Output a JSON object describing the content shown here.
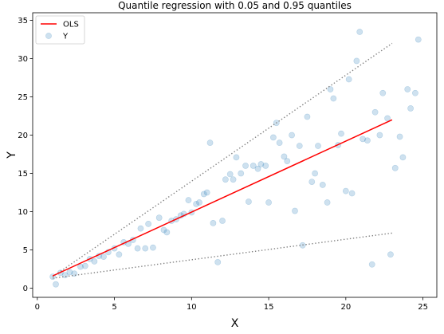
{
  "chart_data": {
    "type": "scatter",
    "title": "Quantile regression with 0.05 and 0.95 quantiles",
    "xlabel": "X",
    "ylabel": "Y",
    "xlim": [
      -0.3,
      25.9
    ],
    "ylim": [
      -1.2,
      36
    ],
    "xticks": [
      0,
      5,
      10,
      15,
      20,
      25
    ],
    "yticks": [
      0,
      5,
      10,
      15,
      20,
      25,
      30,
      35
    ],
    "grid": false,
    "legend": {
      "placement": "top-left",
      "entries": [
        "OLS",
        "Y"
      ]
    },
    "colors": {
      "ols": "#ff0000",
      "points": "#1f77b4",
      "quantile": "#808080"
    },
    "series": [
      {
        "name": "Y",
        "kind": "scatter",
        "points": [
          [
            1.0,
            1.5
          ],
          [
            1.2,
            0.5
          ],
          [
            1.5,
            2.0
          ],
          [
            1.8,
            1.7
          ],
          [
            2.1,
            2.1
          ],
          [
            2.4,
            1.9
          ],
          [
            2.8,
            2.8
          ],
          [
            3.1,
            2.9
          ],
          [
            3.4,
            3.8
          ],
          [
            3.7,
            3.5
          ],
          [
            4.0,
            4.2
          ],
          [
            4.3,
            4.1
          ],
          [
            4.6,
            4.7
          ],
          [
            5.0,
            5.2
          ],
          [
            5.3,
            4.4
          ],
          [
            5.6,
            6.0
          ],
          [
            5.9,
            5.8
          ],
          [
            6.2,
            6.3
          ],
          [
            6.5,
            5.2
          ],
          [
            6.7,
            7.8
          ],
          [
            7.0,
            5.2
          ],
          [
            7.2,
            8.4
          ],
          [
            7.5,
            5.3
          ],
          [
            7.9,
            9.2
          ],
          [
            8.2,
            7.6
          ],
          [
            8.4,
            7.3
          ],
          [
            8.7,
            8.8
          ],
          [
            9.0,
            9.0
          ],
          [
            9.3,
            9.5
          ],
          [
            9.5,
            9.7
          ],
          [
            9.8,
            11.5
          ],
          [
            10.0,
            9.9
          ],
          [
            10.3,
            11.0
          ],
          [
            10.5,
            11.2
          ],
          [
            10.8,
            12.3
          ],
          [
            11.0,
            12.5
          ],
          [
            11.2,
            19.0
          ],
          [
            11.4,
            8.5
          ],
          [
            11.7,
            3.4
          ],
          [
            12.0,
            8.8
          ],
          [
            12.2,
            14.2
          ],
          [
            12.5,
            14.9
          ],
          [
            12.7,
            14.2
          ],
          [
            12.9,
            17.1
          ],
          [
            13.2,
            15.0
          ],
          [
            13.5,
            16.0
          ],
          [
            13.7,
            11.3
          ],
          [
            14.0,
            16.0
          ],
          [
            14.3,
            15.6
          ],
          [
            14.5,
            16.2
          ],
          [
            14.8,
            16.0
          ],
          [
            15.0,
            11.2
          ],
          [
            15.3,
            19.7
          ],
          [
            15.5,
            21.6
          ],
          [
            15.7,
            19.0
          ],
          [
            16.0,
            17.2
          ],
          [
            16.2,
            16.6
          ],
          [
            16.5,
            20.0
          ],
          [
            16.7,
            10.1
          ],
          [
            17.0,
            18.6
          ],
          [
            17.2,
            5.6
          ],
          [
            17.5,
            22.4
          ],
          [
            17.8,
            13.9
          ],
          [
            18.0,
            15.0
          ],
          [
            18.2,
            18.6
          ],
          [
            18.5,
            13.5
          ],
          [
            18.8,
            11.2
          ],
          [
            19.0,
            26.0
          ],
          [
            19.2,
            24.8
          ],
          [
            19.5,
            18.7
          ],
          [
            19.7,
            20.2
          ],
          [
            20.0,
            12.7
          ],
          [
            20.2,
            27.3
          ],
          [
            20.4,
            12.4
          ],
          [
            20.7,
            29.7
          ],
          [
            20.9,
            33.5
          ],
          [
            21.1,
            19.5
          ],
          [
            21.4,
            19.3
          ],
          [
            21.7,
            3.1
          ],
          [
            21.9,
            23.0
          ],
          [
            22.2,
            20.0
          ],
          [
            22.4,
            25.5
          ],
          [
            22.7,
            22.2
          ],
          [
            22.9,
            4.4
          ],
          [
            23.2,
            15.7
          ],
          [
            23.5,
            19.8
          ],
          [
            23.7,
            17.1
          ],
          [
            24.0,
            26.0
          ],
          [
            24.2,
            23.5
          ],
          [
            24.5,
            25.5
          ],
          [
            24.7,
            32.5
          ]
        ]
      },
      {
        "name": "OLS",
        "kind": "line",
        "points": [
          [
            1.0,
            1.6
          ],
          [
            23.0,
            22.0
          ]
        ]
      },
      {
        "kind": "quantile-line",
        "quantile": 0.95,
        "points": [
          [
            1.0,
            1.5
          ],
          [
            23.0,
            32.0
          ]
        ]
      },
      {
        "kind": "quantile-line",
        "quantile": 0.05,
        "points": [
          [
            1.0,
            1.3
          ],
          [
            23.0,
            7.2
          ]
        ]
      }
    ]
  }
}
